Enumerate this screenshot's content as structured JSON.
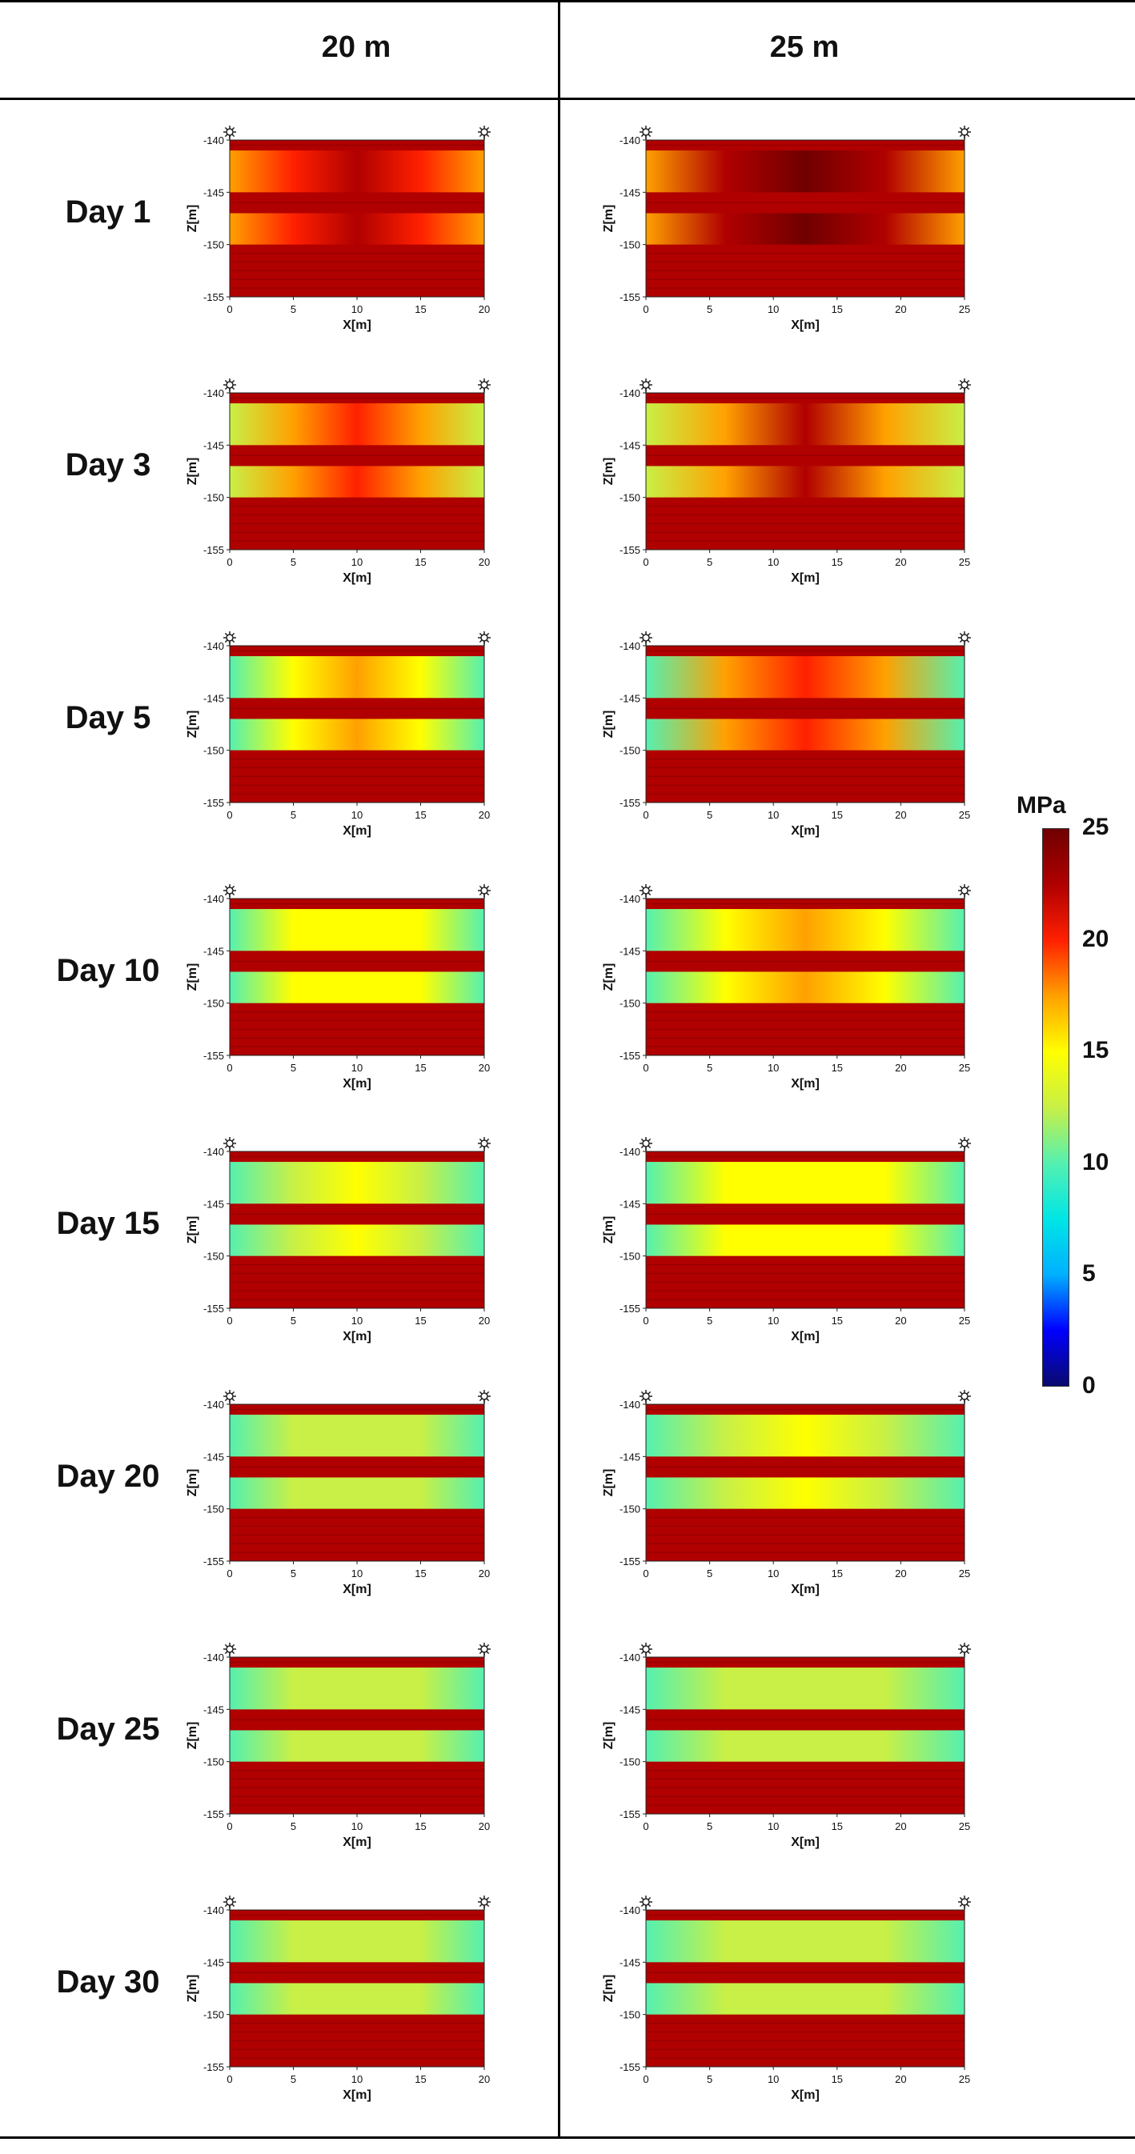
{
  "columns": [
    {
      "label": "20 m",
      "x_tick_labels": [
        "0",
        "5",
        "10",
        "15",
        "20"
      ],
      "xmax": 20
    },
    {
      "label": "25 m",
      "x_tick_labels": [
        "0",
        "5",
        "10",
        "15",
        "20",
        "25"
      ],
      "xmax": 25
    }
  ],
  "rows": [
    {
      "label": "Day 1"
    },
    {
      "label": "Day 3"
    },
    {
      "label": "Day 5"
    },
    {
      "label": "Day 10"
    },
    {
      "label": "Day 15"
    },
    {
      "label": "Day 20"
    },
    {
      "label": "Day 25"
    },
    {
      "label": "Day 30"
    }
  ],
  "chart_data": {
    "type": "heatmap",
    "xlabel": "X[m]",
    "ylabel": "Z[m]",
    "y_tick_labels": [
      "-140",
      "-145",
      "-150",
      "-155"
    ],
    "ylim": [
      -155,
      -140
    ],
    "colorbar": {
      "title": "MPa",
      "range": [
        0,
        25
      ],
      "ticks": [
        "25",
        "20",
        "15",
        "10",
        "5",
        "0"
      ],
      "colors": [
        "#0a0a6e",
        "#0000ff",
        "#00b0ff",
        "#00e6e6",
        "#55f0b0",
        "#c8f046",
        "#ffff00",
        "#ffa000",
        "#ff2000",
        "#b00000",
        "#700000"
      ]
    },
    "strong_layers_z": [
      [
        -140,
        -141
      ],
      [
        -145,
        -147
      ],
      [
        -150,
        -155
      ]
    ],
    "panel_values": {
      "days": [
        1,
        3,
        5,
        10,
        15,
        20,
        25,
        30
      ],
      "widths_m": [
        20,
        25
      ],
      "weak_layer_center_MPa": [
        [
          23,
          24
        ],
        [
          21,
          22
        ],
        [
          18,
          20
        ],
        [
          16,
          17
        ],
        [
          14,
          15.5
        ],
        [
          13.5,
          14.5
        ],
        [
          13,
          13.5
        ],
        [
          13,
          13
        ]
      ],
      "weak_layer_edge_MPa": [
        [
          17,
          17
        ],
        [
          12,
          12
        ],
        [
          11,
          11
        ],
        [
          10,
          10
        ],
        [
          10,
          10
        ],
        [
          10,
          10
        ],
        [
          10,
          10
        ],
        [
          10,
          10
        ]
      ],
      "strong_layer_MPa": 23
    }
  }
}
